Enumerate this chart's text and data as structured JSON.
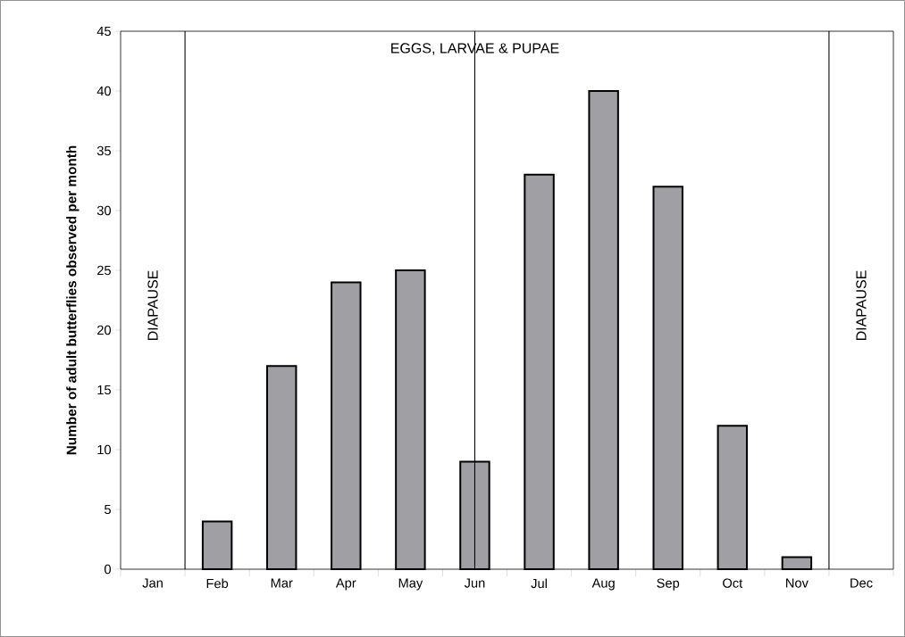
{
  "chart_data": {
    "type": "bar",
    "ylabel": "Number of adult butterflies observed per month",
    "categories": [
      "Jan",
      "Feb",
      "Mar",
      "Apr",
      "May",
      "Jun",
      "Jul",
      "Aug",
      "Sep",
      "Oct",
      "Nov",
      "Dec"
    ],
    "values": [
      null,
      4,
      17,
      24,
      25,
      9,
      33,
      40,
      32,
      12,
      1,
      null
    ],
    "color": "#a0a0a4",
    "ylim": [
      0,
      45
    ],
    "yticks": [
      0,
      5,
      10,
      15,
      20,
      25,
      30,
      35,
      40,
      45
    ],
    "annotations": [
      "DIAPAUSE",
      "EGGS, LARVAE & PUPAE",
      "DIAPAUSE"
    ]
  }
}
